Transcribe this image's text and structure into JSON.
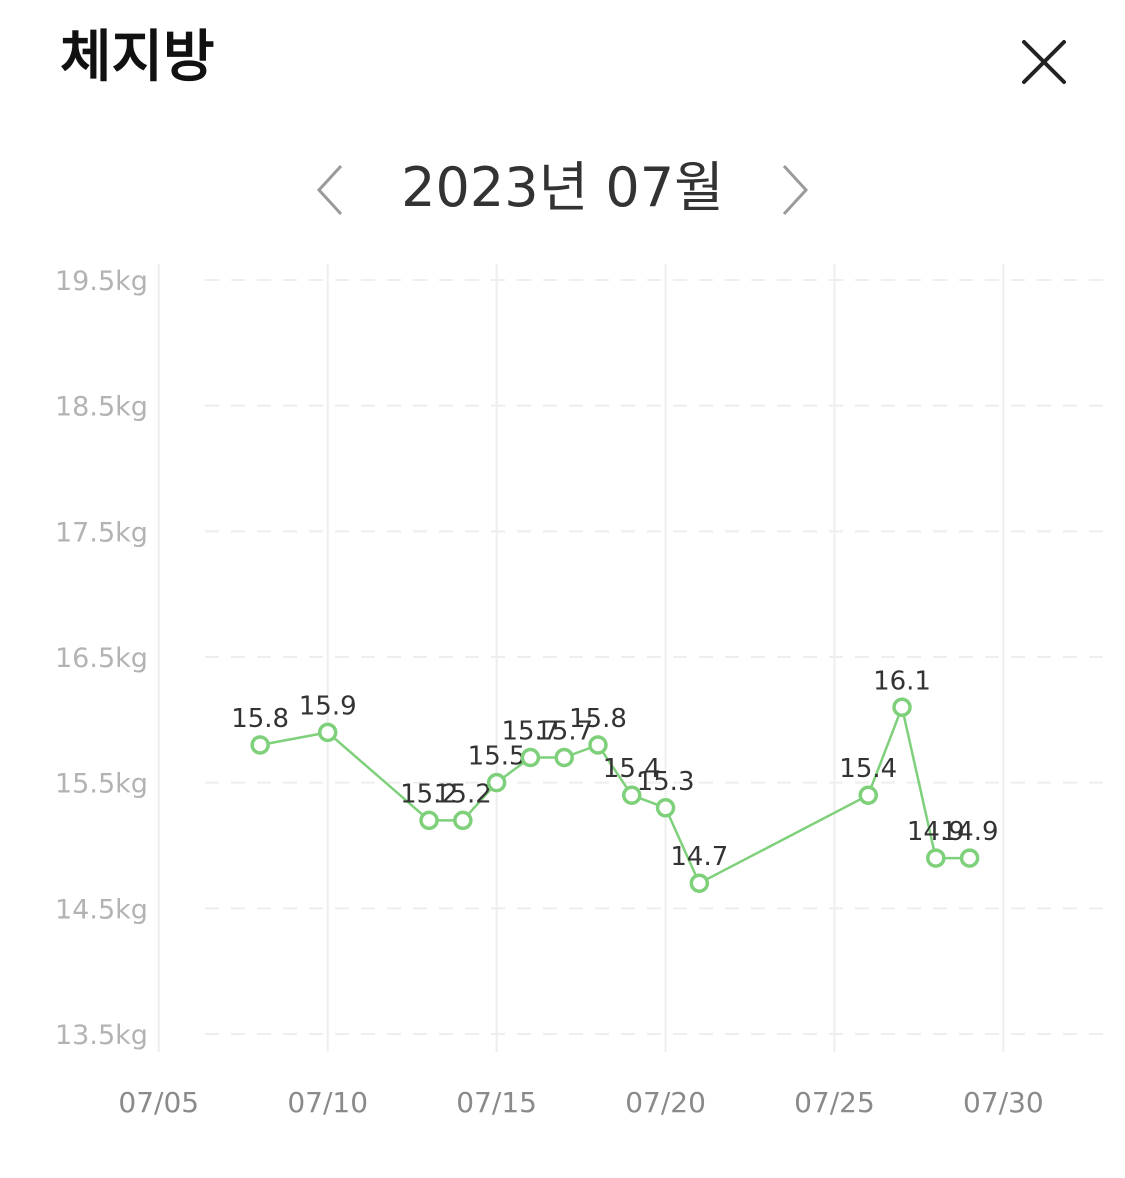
{
  "header": {
    "title": "체지방"
  },
  "nav": {
    "month_label": "2023년 07월"
  },
  "icons": {
    "close": "close-icon",
    "prev": "chevron-left-icon",
    "next": "chevron-right-icon"
  },
  "colors": {
    "line": "#7ed07a",
    "point_fill": "#ffffff",
    "grid": "#eeeeee"
  },
  "chart_data": {
    "type": "line",
    "ylabels": [
      "19.5kg",
      "18.5kg",
      "17.5kg",
      "16.5kg",
      "15.5kg",
      "14.5kg",
      "13.5kg"
    ],
    "yticks": [
      19.5,
      18.5,
      17.5,
      16.5,
      15.5,
      14.5,
      13.5
    ],
    "ylim": [
      13.5,
      19.5
    ],
    "xticks": [
      "07/05",
      "07/10",
      "07/15",
      "07/20",
      "07/25",
      "07/30"
    ],
    "xtick_days": [
      5,
      10,
      15,
      20,
      25,
      30
    ],
    "xlim_days": [
      0.3,
      33.6
    ],
    "grid": true,
    "series": [
      {
        "points": [
          {
            "x": "07/08",
            "day": 8,
            "y": 15.8,
            "label": "15.8"
          },
          {
            "x": "07/10",
            "day": 10,
            "y": 15.9,
            "label": "15.9"
          },
          {
            "x": "07/13",
            "day": 13,
            "y": 15.2,
            "label": "15.2"
          },
          {
            "x": "07/14",
            "day": 14,
            "y": 15.2,
            "label": "15.2"
          },
          {
            "x": "07/15",
            "day": 15,
            "y": 15.5,
            "label": "15.5"
          },
          {
            "x": "07/16",
            "day": 16,
            "y": 15.7,
            "label": "15.7"
          },
          {
            "x": "07/17",
            "day": 17,
            "y": 15.7,
            "label": "15.7"
          },
          {
            "x": "07/18",
            "day": 18,
            "y": 15.8,
            "label": "15.8"
          },
          {
            "x": "07/19",
            "day": 19,
            "y": 15.4,
            "label": "15.4"
          },
          {
            "x": "07/20",
            "day": 20,
            "y": 15.3,
            "label": "15.3"
          },
          {
            "x": "07/21",
            "day": 21,
            "y": 14.7,
            "label": "14.7"
          },
          {
            "x": "07/26",
            "day": 26,
            "y": 15.4,
            "label": "15.4"
          },
          {
            "x": "07/27",
            "day": 27,
            "y": 16.1,
            "label": "16.1"
          },
          {
            "x": "07/28",
            "day": 28,
            "y": 14.9,
            "label": "14.9"
          },
          {
            "x": "07/29",
            "day": 29,
            "y": 14.9,
            "label": "14.9"
          }
        ]
      }
    ]
  }
}
